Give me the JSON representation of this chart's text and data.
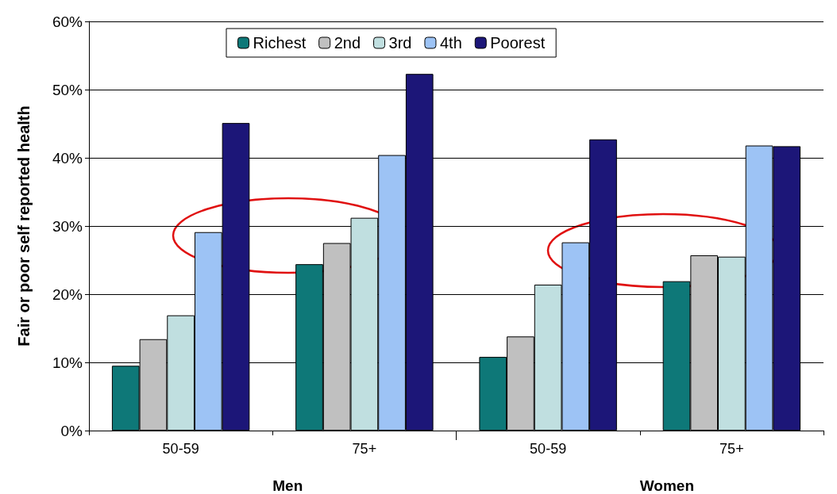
{
  "chart_data": {
    "type": "bar",
    "ylabel": "Fair or poor self reported health",
    "categories": [
      "50-59",
      "75+",
      "50-59",
      "75+"
    ],
    "series": [
      {
        "name": "Richest",
        "color": "#0e7878",
        "values": [
          9.5,
          24.4,
          10.8,
          21.9
        ]
      },
      {
        "name": "2nd",
        "color": "#c0c0c0",
        "values": [
          13.4,
          27.5,
          13.8,
          25.7
        ]
      },
      {
        "name": "3rd",
        "color": "#c0dfe0",
        "values": [
          16.9,
          31.2,
          21.4,
          25.5
        ]
      },
      {
        "name": "4th",
        "color": "#9dc3f5",
        "values": [
          29.1,
          40.4,
          27.6,
          41.8
        ]
      },
      {
        "name": "Poorest",
        "color": "#1c1678",
        "values": [
          45.1,
          52.3,
          42.7,
          41.7
        ]
      }
    ],
    "ylim": [
      0,
      60
    ],
    "yticks": [
      {
        "value": 0,
        "label": "0%"
      },
      {
        "value": 10,
        "label": "10%"
      },
      {
        "value": 20,
        "label": "20%"
      },
      {
        "value": 30,
        "label": "30%"
      },
      {
        "value": 40,
        "label": "40%"
      },
      {
        "value": 50,
        "label": "50%"
      },
      {
        "value": 60,
        "label": "60%"
      }
    ],
    "grid": "y",
    "legend": "top",
    "annotations": [
      "Men",
      "Women"
    ]
  }
}
